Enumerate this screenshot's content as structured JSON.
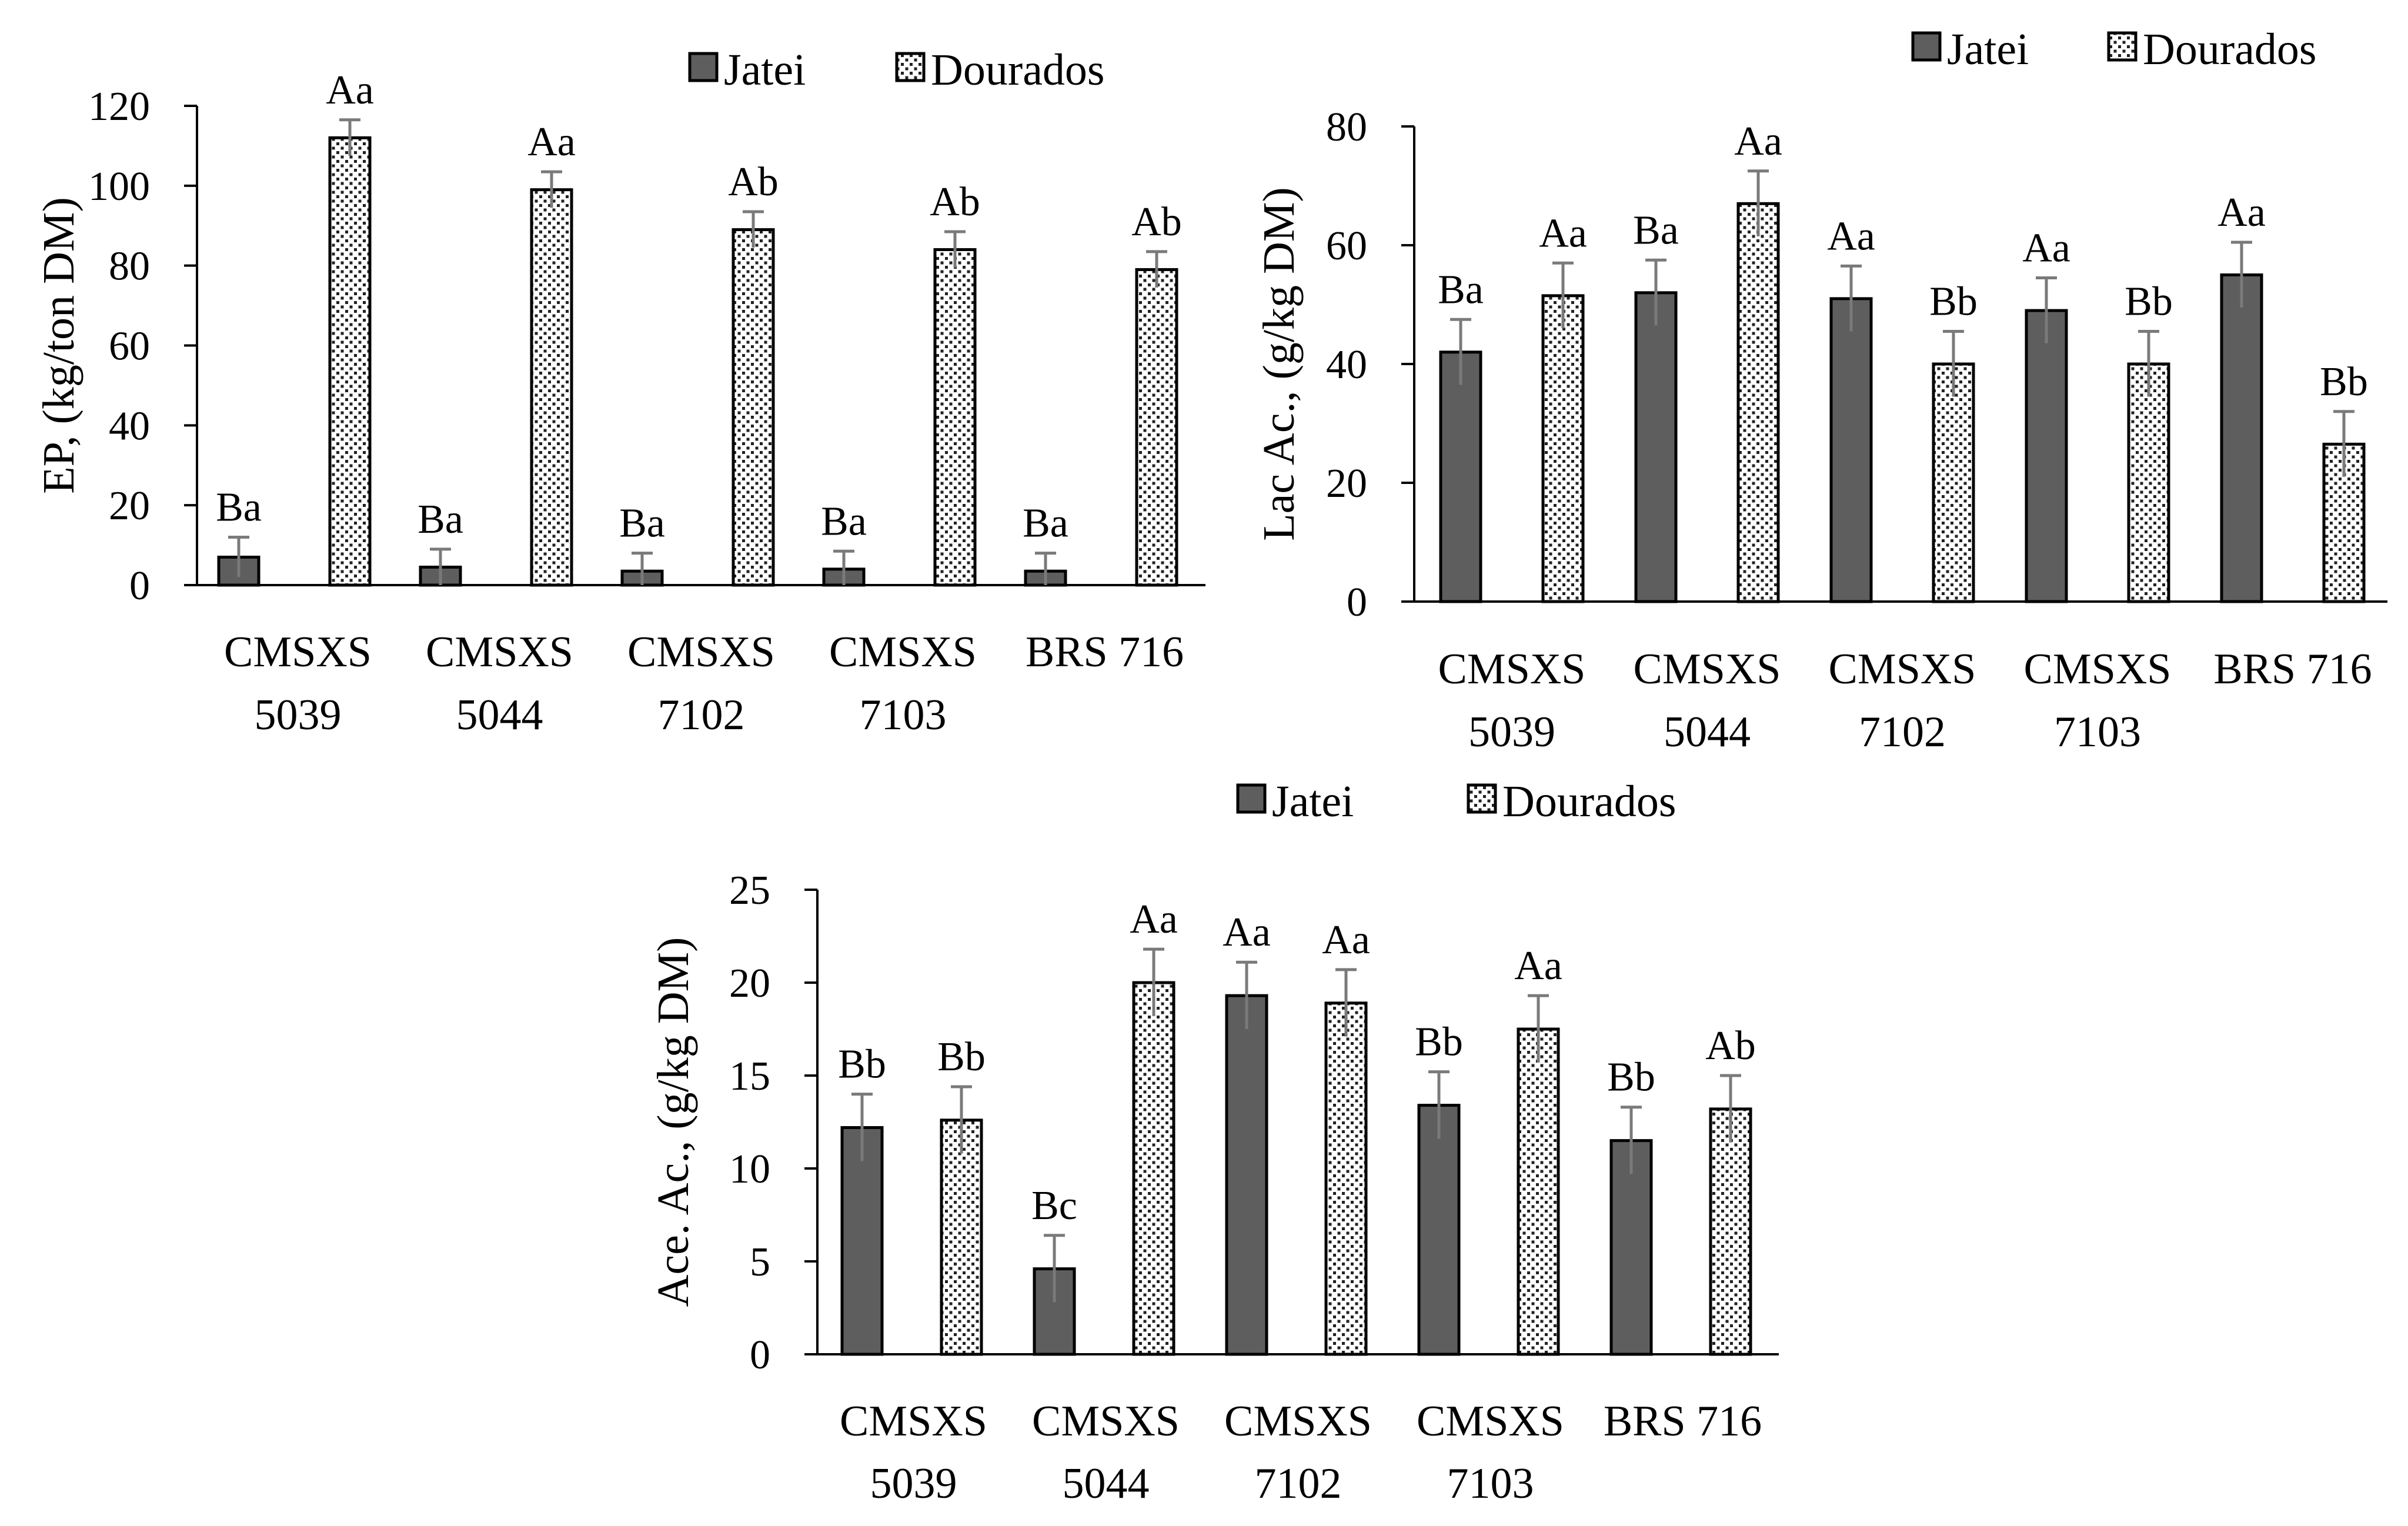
{
  "colors": {
    "jatei": "#5e5e5e",
    "dourados_dot": "#222222",
    "background": "#ffffff"
  },
  "chart_data": [
    {
      "type": "bar",
      "title": "",
      "xlabel": "",
      "ylabel": "EP, (kg/ton DM)",
      "ylim": [
        0,
        120
      ],
      "yticks": [
        "0",
        "20",
        "40",
        "60",
        "80",
        "100",
        "120"
      ],
      "categories": [
        [
          "CMSXS",
          "5039"
        ],
        [
          "CMSXS",
          "5044"
        ],
        [
          "CMSXS",
          "7102"
        ],
        [
          "CMSXS",
          "7103"
        ],
        [
          "BRS 716"
        ]
      ],
      "legend": [
        "Jatei",
        "Dourados"
      ],
      "series": [
        {
          "name": "Jatei",
          "values": [
            7,
            4.5,
            3.5,
            4,
            3.5
          ],
          "errors": [
            5,
            4.5,
            4.5,
            4.5,
            4.5
          ],
          "labels": [
            "Ba",
            "Ba",
            "Ba",
            "Ba",
            "Ba"
          ]
        },
        {
          "name": "Dourados",
          "values": [
            112,
            99,
            89,
            84,
            79
          ],
          "errors": [
            4.5,
            4.5,
            4.5,
            4.5,
            4.5
          ],
          "labels": [
            "Aa",
            "Aa",
            "Ab",
            "Ab",
            "Ab"
          ]
        }
      ]
    },
    {
      "type": "bar",
      "title": "",
      "xlabel": "",
      "ylabel": "Lac Ac., (g/kg DM)",
      "ylim": [
        0,
        80
      ],
      "yticks": [
        "0",
        "20",
        "40",
        "60",
        "80"
      ],
      "categories": [
        [
          "CMSXS",
          "5039"
        ],
        [
          "CMSXS",
          "5044"
        ],
        [
          "CMSXS",
          "7102"
        ],
        [
          "CMSXS",
          "7103"
        ],
        [
          "BRS 716"
        ]
      ],
      "legend": [
        "Jatei",
        "Dourados"
      ],
      "series": [
        {
          "name": "Jatei",
          "values": [
            42,
            52,
            51,
            49,
            55
          ],
          "errors": [
            5.5,
            5.5,
            5.5,
            5.5,
            5.5
          ],
          "labels": [
            "Ba",
            "Ba",
            "Aa",
            "Aa",
            "Aa"
          ]
        },
        {
          "name": "Dourados",
          "values": [
            51.5,
            67,
            40,
            40,
            26.5
          ],
          "errors": [
            5.5,
            5.5,
            5.5,
            5.5,
            5.5
          ],
          "labels": [
            "Aa",
            "Aa",
            "Bb",
            "Bb",
            "Bb"
          ]
        }
      ]
    },
    {
      "type": "bar",
      "title": "",
      "xlabel": "",
      "ylabel": "Ace. Ac., (g/kg  DM)",
      "ylim": [
        0,
        25
      ],
      "yticks": [
        "0",
        "5",
        "10",
        "15",
        "20",
        "25"
      ],
      "categories": [
        [
          "CMSXS",
          "5039"
        ],
        [
          "CMSXS",
          "5044"
        ],
        [
          "CMSXS",
          "7102"
        ],
        [
          "CMSXS",
          "7103"
        ],
        [
          "BRS 716"
        ]
      ],
      "legend": [
        "Jatei",
        "Dourados"
      ],
      "series": [
        {
          "name": "Jatei",
          "values": [
            12.2,
            4.6,
            19.3,
            13.4,
            11.5
          ],
          "errors": [
            1.8,
            1.8,
            1.8,
            1.8,
            1.8
          ],
          "labels": [
            "Bb",
            "Bc",
            "Aa",
            "Bb",
            "Bb"
          ]
        },
        {
          "name": "Dourados",
          "values": [
            12.6,
            20,
            18.9,
            17.5,
            13.2
          ],
          "errors": [
            1.8,
            1.8,
            1.8,
            1.8,
            1.8
          ],
          "labels": [
            "Bb",
            "Aa",
            "Aa",
            "Aa",
            "Ab"
          ]
        }
      ]
    }
  ]
}
